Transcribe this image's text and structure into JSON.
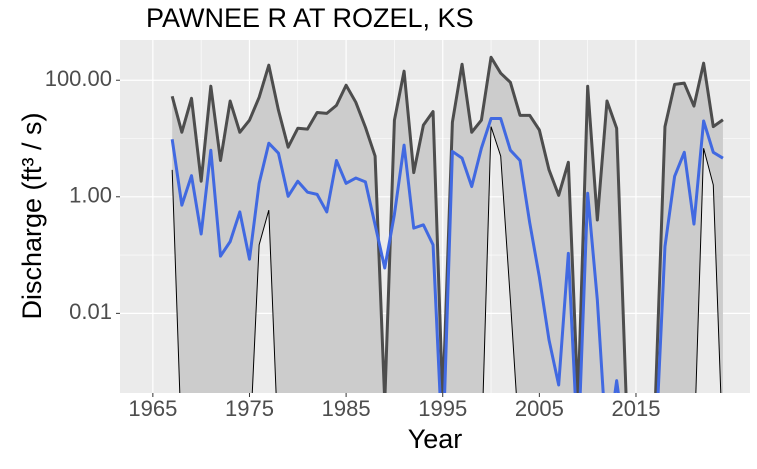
{
  "chart_data": {
    "type": "ribbon-line",
    "title": "PAWNEE R AT ROZEL, KS",
    "x_label": "Year",
    "y_label": "Discharge (ft³ / s)",
    "x": [
      1967,
      1968,
      1969,
      1970,
      1971,
      1972,
      1973,
      1974,
      1975,
      1976,
      1977,
      1978,
      1979,
      1980,
      1981,
      1982,
      1983,
      1984,
      1985,
      1986,
      1987,
      1988,
      1989,
      1990,
      1991,
      1992,
      1993,
      1994,
      1995,
      1996,
      1997,
      1998,
      1999,
      2000,
      2001,
      2002,
      2003,
      2004,
      2005,
      2006,
      2007,
      2008,
      2009,
      2010,
      2011,
      2012,
      2013,
      2014,
      2015,
      2016,
      2017,
      2018,
      2019,
      2020,
      2021,
      2022,
      2023,
      2024
    ],
    "series": [
      {
        "color": "#4d4d4d",
        "values": [
          53,
          12.8,
          49,
          1.85,
          79,
          4.2,
          44,
          12.8,
          20.6,
          51,
          181,
          30.5,
          7.1,
          15,
          14.5,
          28,
          27,
          37,
          82,
          42,
          15.6,
          5,
          0.0003,
          20.6,
          143,
          2.6,
          17,
          29,
          0.0003,
          19,
          188,
          12.8,
          20.6,
          248,
          132,
          92,
          25,
          25,
          14,
          2.9,
          1.06,
          3.9,
          0.0003,
          79,
          0.4,
          44,
          15,
          0.0003,
          null,
          null,
          0.0003,
          16,
          85,
          89,
          36,
          196,
          16,
          21
        ]
      },
      {
        "color": "#4169e1",
        "values": [
          9.7,
          0.72,
          2.3,
          0.23,
          6.3,
          0.096,
          0.17,
          0.55,
          0.085,
          1.7,
          8.3,
          5.6,
          1.02,
          1.85,
          1.2,
          1.1,
          0.55,
          4.2,
          1.7,
          2.1,
          1.8,
          0.33,
          0.06,
          0.5,
          7.7,
          0.29,
          0.33,
          0.15,
          0,
          6,
          4.6,
          1.5,
          6.8,
          22,
          22,
          6.3,
          4.2,
          0.36,
          0.042,
          0.0035,
          0.00059,
          0.107,
          0,
          1.15,
          0.017,
          0,
          0.0007,
          0,
          null,
          null,
          0,
          0.14,
          2.25,
          5.8,
          0.34,
          20,
          5.8,
          4.6
        ]
      }
    ],
    "ribbon": {
      "color": "#cccccc",
      "lower": [
        2.9,
        0,
        0,
        0,
        0,
        0,
        0,
        0,
        0,
        0.15,
        0.59,
        0,
        0,
        0,
        0,
        0,
        0,
        0,
        0,
        0,
        0,
        0,
        0,
        0,
        0,
        0,
        0,
        0,
        0,
        0,
        0,
        0,
        0,
        16,
        5,
        0.017,
        0,
        0,
        0,
        0,
        0,
        0,
        0,
        0,
        0,
        0,
        0,
        0,
        null,
        null,
        0,
        0,
        0,
        0,
        0,
        6.8,
        1.6,
        0
      ]
    },
    "log_y": true,
    "xlim": [
      1961.6,
      2026.8
    ],
    "xticks": [
      1965,
      1975,
      1985,
      1995,
      2005,
      2015
    ],
    "ylim": [
      0.00043,
      490
    ],
    "yticks": [
      {
        "value": 100,
        "label": "100.00"
      },
      {
        "value": 1,
        "label": "1.00"
      },
      {
        "value": 0.01,
        "label": "0.01"
      }
    ],
    "grid": true
  }
}
